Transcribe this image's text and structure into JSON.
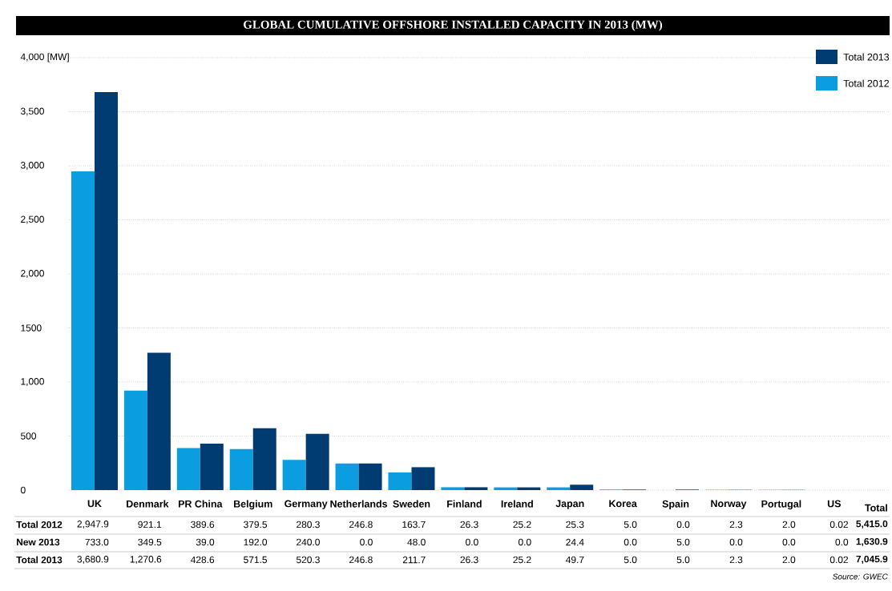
{
  "chart_data": {
    "type": "bar",
    "title": "GLOBAL CUMULATIVE OFFSHORE INSTALLED CAPACITY IN 2013 (MW)",
    "categories": [
      "UK",
      "Denmark",
      "PR China",
      "Belgium",
      "Germany",
      "Netherlands",
      "Sweden",
      "Finland",
      "Ireland",
      "Japan",
      "Korea",
      "Spain",
      "Norway",
      "Portugal",
      "US"
    ],
    "series": [
      {
        "name": "Total 2012",
        "color": "#0a9ee0",
        "values": [
          2947.9,
          921.1,
          389.6,
          379.5,
          280.3,
          246.8,
          163.7,
          26.3,
          25.2,
          25.3,
          5.0,
          0.0,
          2.3,
          2.0,
          0.02
        ],
        "value_labels": [
          "2,947.9",
          "921.1",
          "389.6",
          "379.5",
          "280.3",
          "246.8",
          "163.7",
          "26.3",
          "25.2",
          "25.3",
          "5.0",
          "0.0",
          "2.3",
          "2.0",
          "0.02"
        ]
      },
      {
        "name": "Total 2013",
        "color": "#003b71",
        "values": [
          3680.9,
          1270.6,
          428.6,
          571.5,
          520.3,
          246.8,
          211.7,
          26.3,
          25.2,
          49.7,
          5.0,
          5.0,
          2.3,
          2.0,
          0.02
        ],
        "value_labels": [
          "3,680.9",
          "1,270.6",
          "428.6",
          "571.5",
          "520.3",
          "246.8",
          "211.7",
          "26.3",
          "25.2",
          "49.7",
          "5.0",
          "5.0",
          "2.3",
          "2.0",
          "0.02"
        ]
      }
    ],
    "ylim": [
      0,
      4000
    ],
    "yticks": [
      0,
      500,
      {
        "value": 1000,
        "label": "1,000"
      },
      1500,
      {
        "value": 2000,
        "label": "2,000"
      },
      {
        "value": 2500,
        "label": "2,500"
      },
      {
        "value": 3000,
        "label": "3,000"
      },
      {
        "value": 3500,
        "label": "3,500"
      },
      {
        "value": 4000,
        "label": "4,000 [MW]"
      }
    ],
    "grid": "y",
    "legend": "top right",
    "annotations": [
      "New 2013",
      "733.0",
      "349.5",
      "39.0",
      "192.0",
      "240.0",
      "0.0",
      "48.0",
      "0.0",
      "0.0",
      "24.4",
      "0.0",
      "5.0",
      "0.0",
      "0.0",
      "0.0",
      "Total",
      "5,415.0",
      "1,630.9",
      "7,045.9",
      "Source: GWEC"
    ]
  }
}
